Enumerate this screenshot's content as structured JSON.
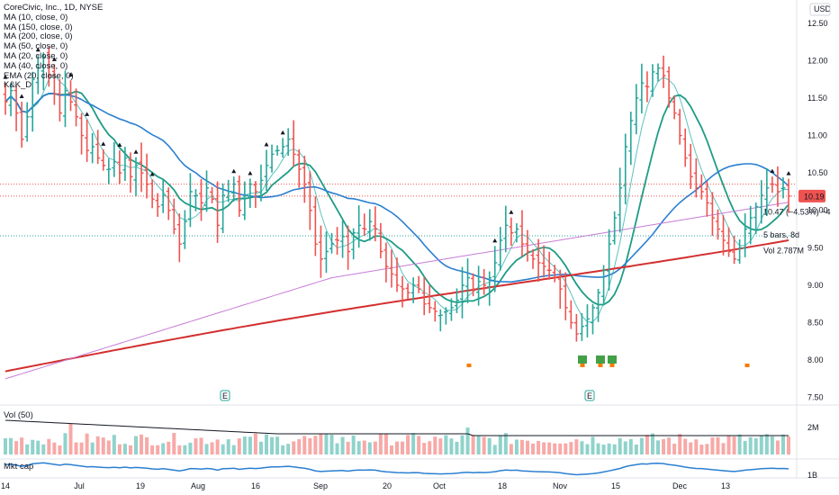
{
  "header": {
    "title": "CoreCivic, Inc., 1D, NYSE",
    "currency": "USD"
  },
  "indicators": [
    "MA (10, close, 0)",
    "MA (150, close, 0)",
    "MA (200, close, 0)",
    "MA (50, close, 0)",
    "MA (20, close, 0)",
    "MA (40, close, 0)",
    "EMA (20, close, 0)",
    "K&K_D"
  ],
  "price_scale": [
    "12.50",
    "12.00",
    "11.50",
    "11.00",
    "10.50",
    "10.00",
    "9.50",
    "9.00",
    "8.50",
    "8.00",
    "7.50"
  ],
  "last_price": "10.19",
  "annotations": {
    "change": "10.47 (−4.53%) −4",
    "bars": "5 bars, 8d",
    "volume": "Vol 2.787M"
  },
  "volume_pane": {
    "label": "Vol (50)",
    "scale": "2M"
  },
  "mktcap_pane": {
    "label": "Mkt cap",
    "scale": "1B"
  },
  "time_axis": [
    "14",
    "Jul",
    "19",
    "Aug",
    "16",
    "Sep",
    "20",
    "Oct",
    "18",
    "Nov",
    "15",
    "Dec",
    "13"
  ],
  "earnings_markers": [
    "E",
    "E"
  ],
  "colors": {
    "up": "#26a69a",
    "down": "#ef5350",
    "ma_slow": "#d32f2f",
    "ma_blue": "#2b7fd1",
    "ma_pink": "#c77dd6",
    "ma_teal": "#1e9c85",
    "ma_light": "#5bc3c0",
    "price_label": "#ef5350"
  },
  "chart_data": {
    "type": "ohlc",
    "ylim": [
      7.4,
      12.75
    ],
    "closes": [
      11.45,
      11.6,
      11.3,
      10.95,
      11.25,
      11.75,
      11.9,
      12.05,
      11.8,
      11.55,
      11.3,
      11.6,
      11.45,
      11.25,
      11.0,
      10.8,
      10.85,
      10.7,
      10.6,
      10.55,
      10.65,
      10.5,
      10.7,
      10.45,
      10.6,
      10.5,
      10.35,
      10.15,
      10.05,
      10.2,
      10.0,
      9.75,
      9.55,
      9.85,
      10.25,
      10.2,
      10.1,
      10.3,
      10.15,
      9.8,
      10.2,
      10.25,
      10.35,
      10.0,
      10.2,
      10.35,
      10.25,
      10.4,
      10.6,
      10.75,
      10.8,
      10.85,
      10.95,
      10.75,
      10.55,
      10.35,
      10.0,
      9.55,
      9.35,
      9.45,
      9.55,
      9.6,
      9.65,
      9.45,
      9.7,
      9.8,
      9.75,
      9.85,
      9.75,
      9.45,
      9.25,
      9.15,
      9.0,
      8.95,
      8.9,
      9.0,
      8.95,
      8.75,
      8.7,
      8.65,
      8.6,
      8.65,
      8.7,
      8.8,
      9.0,
      9.1,
      8.95,
      9.05,
      9.0,
      9.1,
      9.3,
      9.6,
      9.8,
      9.7,
      9.75,
      9.55,
      9.45,
      9.35,
      9.3,
      9.25,
      9.2,
      9.1,
      8.95,
      8.7,
      8.5,
      8.35,
      8.45,
      8.55,
      8.7,
      8.9,
      9.2,
      9.55,
      9.9,
      10.3,
      10.85,
      11.2,
      11.5,
      11.7,
      11.65,
      11.85,
      11.9,
      11.8,
      11.5,
      11.3,
      11.0,
      10.7,
      10.45,
      10.3,
      10.25,
      10.1,
      9.9,
      9.75,
      9.6,
      9.45,
      9.35,
      9.5,
      9.75,
      9.9,
      10.05,
      10.2,
      10.3,
      10.35,
      10.25,
      10.3,
      10.19
    ],
    "volume_pane": {
      "label": "Vol (50)",
      "scale": "2M"
    },
    "mktcap_pane": {
      "label": "Mkt cap",
      "scale": "1B"
    }
  }
}
